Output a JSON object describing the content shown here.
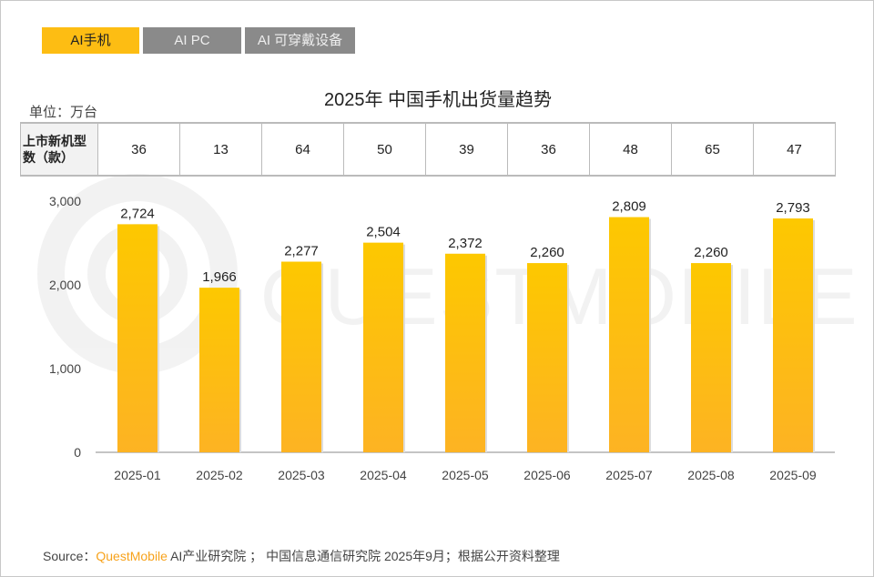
{
  "tabs": [
    {
      "label": "AI手机",
      "active": true
    },
    {
      "label": "AI PC",
      "active": false
    },
    {
      "label": "AI 可穿戴设备",
      "active": false
    }
  ],
  "unit": "单位：万台",
  "table": {
    "header": "上市新机型数（款）",
    "values": [
      "36",
      "13",
      "64",
      "50",
      "39",
      "36",
      "48",
      "65",
      "47"
    ]
  },
  "watermark": "QUESTMOBILE",
  "source": {
    "prefix": "Source：",
    "brand": "QuestMobile",
    "rest": " AI产业研究院 ； 中国信息通信研究院 2025年9月；根据公开资料整理"
  },
  "chart_data": {
    "type": "bar",
    "title": "2025年 中国手机出货量趋势",
    "categories": [
      "2025-01",
      "2025-02",
      "2025-03",
      "2025-04",
      "2025-05",
      "2025-06",
      "2025-07",
      "2025-08",
      "2025-09"
    ],
    "values": [
      2724,
      1966,
      2277,
      2504,
      2372,
      2260,
      2809,
      2260,
      2793
    ],
    "data_labels": [
      "2,724",
      "1,966",
      "2,277",
      "2,504",
      "2,372",
      "2,260",
      "2,809",
      "2,260",
      "2,793"
    ],
    "yticks": [
      "0",
      "1,000",
      "2,000",
      "3,000"
    ],
    "ylim": [
      0,
      3000
    ],
    "grid": false,
    "bar_color_top": "#fdc800",
    "bar_color_bottom": "#fdb323"
  }
}
